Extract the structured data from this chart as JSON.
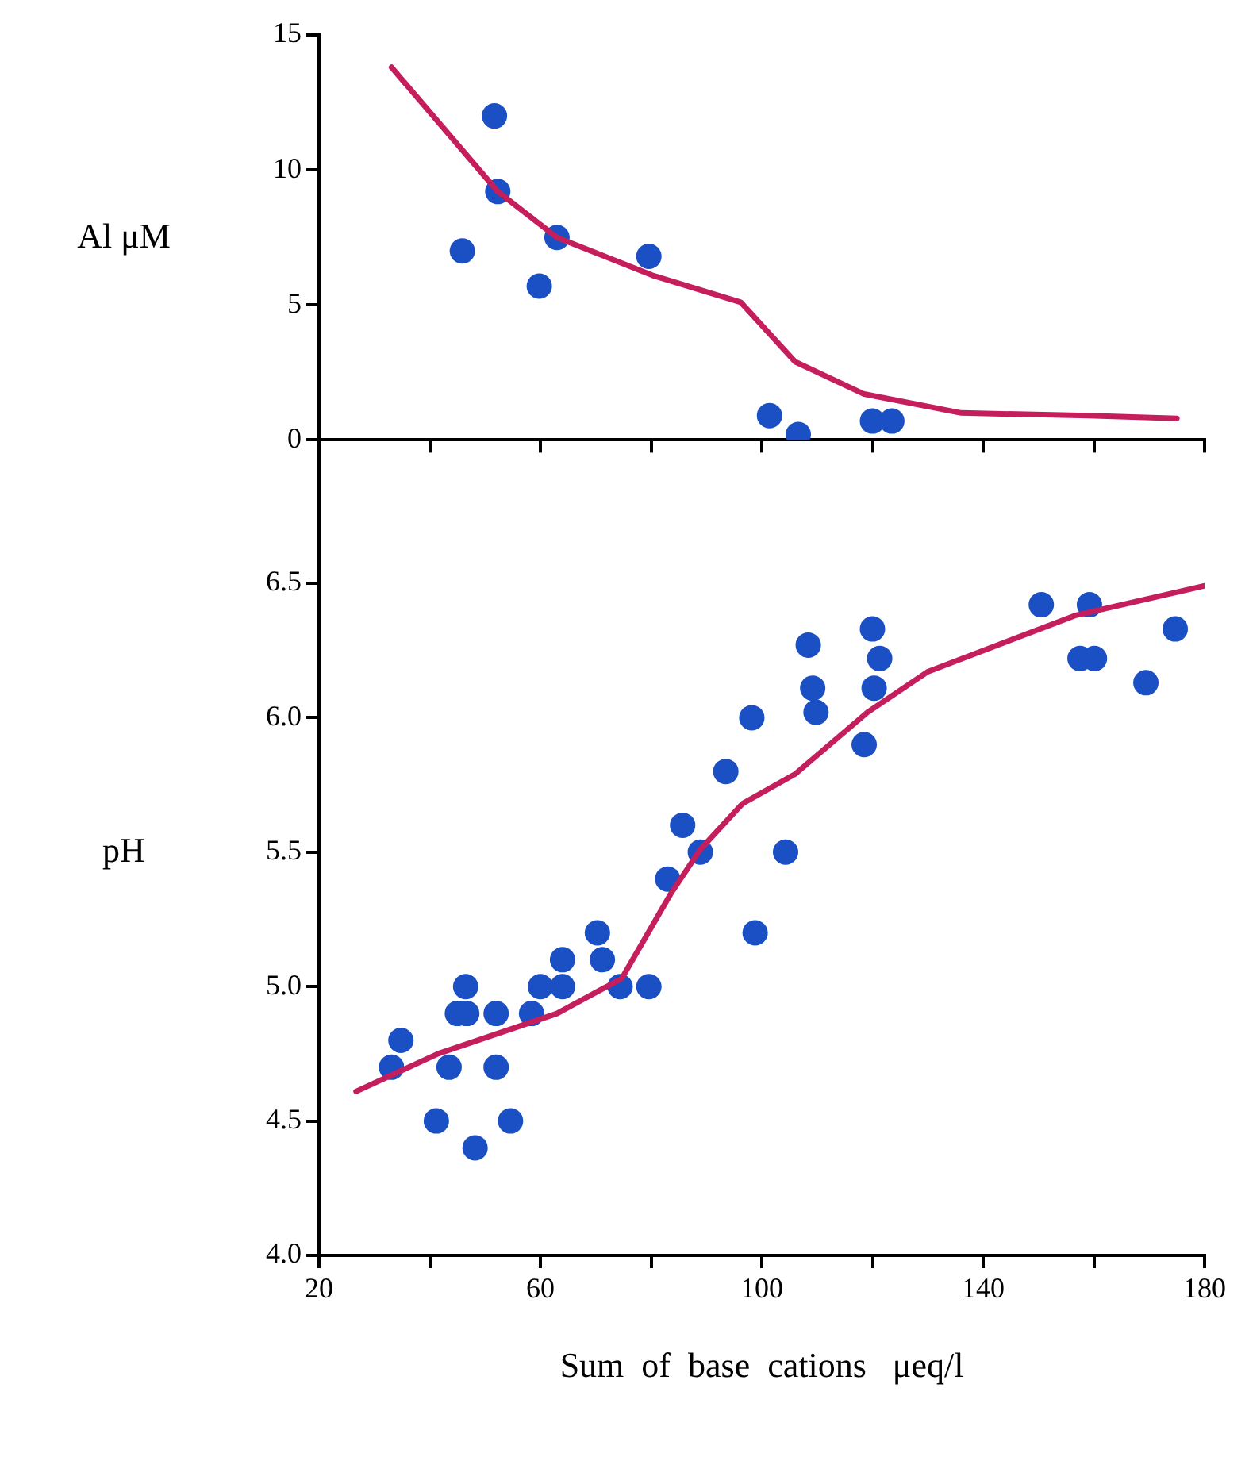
{
  "chart_data": [
    {
      "type": "scatter",
      "ylabel": "Al μM",
      "xlim": [
        20,
        180
      ],
      "xticks": [
        20,
        40,
        60,
        80,
        100,
        120,
        140,
        160,
        180
      ],
      "ylim": [
        0,
        15
      ],
      "yticks": [
        0,
        5,
        10,
        15
      ],
      "tick_labels": "y",
      "legend": false,
      "series": [
        {
          "type": "scatter",
          "marker": "circle",
          "color": "#1b4fc4",
          "x": [
            45.9,
            51.7,
            52.3,
            59.8,
            63,
            79.6,
            101.4,
            106.6,
            120,
            123.5
          ],
          "values": [
            7.0,
            12.0,
            9.2,
            5.7,
            7.5,
            6.8,
            0.9,
            0.2,
            0.7,
            0.7
          ]
        },
        {
          "type": "line",
          "marker": "none",
          "color": "#c41e5c",
          "x": [
            33.1,
            52.3,
            63,
            80.2,
            96.2,
            106,
            118.5,
            136,
            159,
            175
          ],
          "values": [
            13.8,
            9.2,
            7.5,
            6.1,
            5.1,
            2.9,
            1.7,
            1.0,
            0.9,
            0.8
          ]
        }
      ]
    },
    {
      "type": "scatter",
      "ylabel": "pH",
      "xlabel": "Sum  of  base  cations   μeq/l",
      "xlim": [
        20,
        180
      ],
      "xticks": [
        20,
        {
          "value": 40,
          "label": null
        },
        60,
        {
          "value": 80,
          "label": null
        },
        100,
        {
          "value": 120,
          "label": null
        },
        140,
        {
          "value": 160,
          "label": null
        },
        180
      ],
      "ylim": [
        4,
        7
      ],
      "yticks": [
        {
          "value": 4,
          "label": "4.0"
        },
        4.5,
        {
          "value": 5,
          "label": "5.0"
        },
        5.5,
        {
          "value": 6,
          "label": "6.0"
        },
        6.5
      ],
      "legend": false,
      "series": [
        {
          "type": "scatter",
          "marker": "circle",
          "color": "#1b4fc4",
          "x": [
            33.1,
            34.8,
            41.2,
            43.5,
            45,
            46.7,
            46.5,
            48.2,
            52,
            52,
            54.6,
            58.4,
            60,
            64,
            64,
            70.3,
            71.2,
            74.4,
            79.6,
            83,
            85.7,
            88.9,
            93.5,
            98.2,
            98.8,
            104.3,
            108.4,
            109.2,
            109.8,
            120,
            121.3,
            120.3,
            118.5,
            150.5,
            159.2,
            157.5,
            160.1,
            169.4,
            174.7
          ],
          "values": [
            4.7,
            4.8,
            4.5,
            4.7,
            4.9,
            4.9,
            5.0,
            4.4,
            4.9,
            4.7,
            4.5,
            4.9,
            5.0,
            5.0,
            5.1,
            5.2,
            5.1,
            5.0,
            5.0,
            5.4,
            5.6,
            5.5,
            5.8,
            6.0,
            5.2,
            5.5,
            6.27,
            6.11,
            6.02,
            6.33,
            6.22,
            6.11,
            5.9,
            6.42,
            6.42,
            6.22,
            6.22,
            6.13,
            6.33
          ]
        },
        {
          "type": "line",
          "marker": "none",
          "color": "#c41e5c",
          "x": [
            26.7,
            41.5,
            63,
            74.7,
            83.7,
            88.9,
            96.5,
            106,
            119.1,
            129.9,
            156.6,
            179.9
          ],
          "values": [
            4.61,
            4.75,
            4.9,
            5.03,
            5.35,
            5.51,
            5.68,
            5.79,
            6.02,
            6.17,
            6.38,
            6.49
          ]
        }
      ]
    }
  ]
}
